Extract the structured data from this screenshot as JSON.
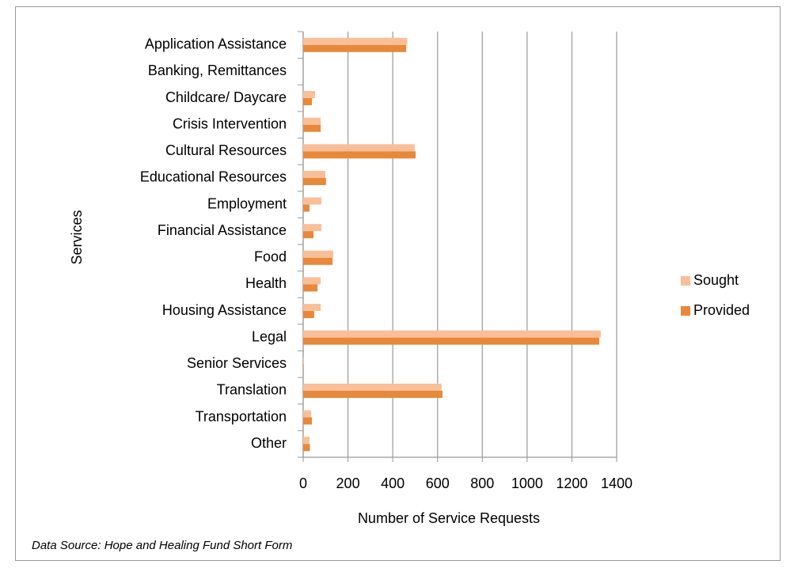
{
  "chart_data": {
    "type": "hbar",
    "categories": [
      "Application Assistance",
      "Banking, Remittances",
      "Childcare/ Daycare",
      "Crisis Intervention",
      "Cultural Resources",
      "Educational Resources",
      "Employment",
      "Financial Assistance",
      "Food",
      "Health",
      "Housing Assistance",
      "Legal",
      "Senior Services",
      "Translation",
      "Transportation",
      "Other"
    ],
    "series": [
      {
        "name": "Sought",
        "color": "#f9bf98",
        "values": [
          465,
          0,
          53,
          78,
          498,
          99,
          81,
          81,
          134,
          78,
          78,
          1329,
          3,
          618,
          35,
          28
        ]
      },
      {
        "name": "Provided",
        "color": "#e8883a",
        "values": [
          460,
          0,
          39,
          78,
          502,
          102,
          28,
          46,
          131,
          64,
          49,
          1322,
          2,
          622,
          39,
          30
        ]
      }
    ],
    "xlim": [
      0,
      1400
    ],
    "xticks": [
      0,
      200,
      400,
      600,
      800,
      1000,
      1200,
      1400
    ],
    "xlabel": "Number of Service Requests",
    "ylabel": "Services",
    "grid": true,
    "legend": "right",
    "source": "Data Source: Hope and Healing Fund Short Form"
  }
}
